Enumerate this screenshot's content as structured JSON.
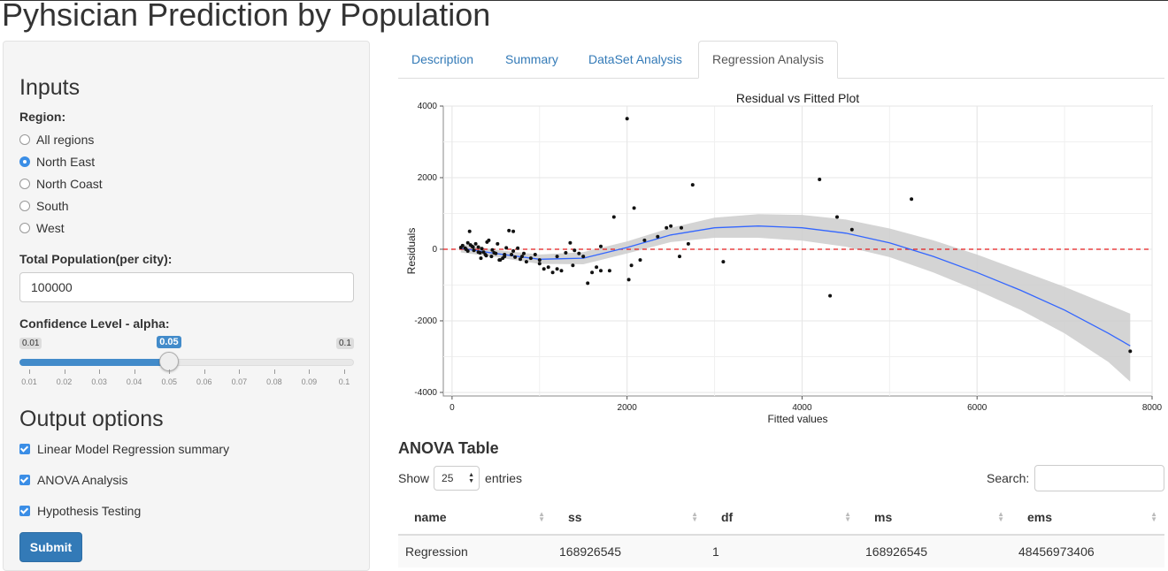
{
  "page": {
    "title": "Pyhsician Prediction by Population"
  },
  "sidebar": {
    "inputs_heading": "Inputs",
    "region_label": "Region:",
    "regions": [
      {
        "label": "All regions",
        "checked": false
      },
      {
        "label": "North East",
        "checked": true
      },
      {
        "label": "North Coast",
        "checked": false
      },
      {
        "label": "South",
        "checked": false
      },
      {
        "label": "West",
        "checked": false
      }
    ],
    "population_label": "Total Population(per city):",
    "population_value": "100000",
    "confidence_label": "Confidence Level - alpha:",
    "slider": {
      "min_label": "0.01",
      "max_label": "0.1",
      "value_label": "0.05",
      "value": 0.05,
      "min": 0.01,
      "max": 0.1,
      "ticks": [
        "0.01",
        "0.02",
        "0.03",
        "0.04",
        "0.05",
        "0.06",
        "0.07",
        "0.08",
        "0.09",
        "0.1"
      ]
    },
    "output_heading": "Output options",
    "outputs": [
      {
        "label": "Linear Model Regression summary",
        "checked": true
      },
      {
        "label": "ANOVA Analysis",
        "checked": true
      },
      {
        "label": "Hypothesis Testing",
        "checked": true
      }
    ],
    "submit_label": "Submit"
  },
  "tabs": [
    {
      "label": "Description",
      "active": false
    },
    {
      "label": "Summary",
      "active": false
    },
    {
      "label": "DataSet Analysis",
      "active": false
    },
    {
      "label": "Regression Analysis",
      "active": true
    }
  ],
  "chart_data": {
    "type": "scatter",
    "title": "Residual vs Fitted Plot",
    "xlabel": "Fitted values",
    "ylabel": "Residuals",
    "xlim": [
      -100,
      8000
    ],
    "ylim": [
      -4100,
      4000
    ],
    "xticks": [
      0,
      2000,
      4000,
      6000,
      8000
    ],
    "yticks": [
      -4000,
      -2000,
      0,
      2000,
      4000
    ],
    "grid": true,
    "reference_line": {
      "y": 0,
      "style": "dashed",
      "color": "#e31a1c"
    },
    "smooth": {
      "color": "#3366ff",
      "band_color": "#cccccc",
      "x": [
        100,
        500,
        1000,
        1500,
        2000,
        2500,
        3000,
        3500,
        4000,
        4500,
        5000,
        5500,
        6000,
        6500,
        7000,
        7500,
        7750
      ],
      "y": [
        30,
        -120,
        -280,
        -250,
        50,
        400,
        600,
        650,
        600,
        450,
        180,
        -200,
        -650,
        -1150,
        -1700,
        -2350,
        -2700
      ],
      "upper": [
        150,
        -20,
        -150,
        -80,
        220,
        600,
        880,
        980,
        960,
        830,
        580,
        250,
        -150,
        -600,
        -1050,
        -1550,
        -1800
      ],
      "lower": [
        -90,
        -220,
        -410,
        -420,
        -120,
        200,
        320,
        320,
        240,
        70,
        -220,
        -650,
        -1150,
        -1700,
        -2350,
        -3150,
        -3700
      ]
    },
    "points": {
      "x": [
        100,
        120,
        150,
        160,
        180,
        200,
        210,
        230,
        250,
        270,
        300,
        320,
        340,
        360,
        380,
        400,
        420,
        450,
        480,
        500,
        520,
        550,
        580,
        600,
        620,
        650,
        680,
        700,
        720,
        750,
        780,
        800,
        850,
        900,
        950,
        1000,
        1050,
        1100,
        1150,
        1200,
        1250,
        1300,
        1350,
        1400,
        1450,
        1500,
        1550,
        1600,
        1650,
        1700,
        1800,
        1850,
        2000,
        2020,
        2050,
        2080,
        2150,
        2200,
        2350,
        2450,
        2500,
        2600,
        2620,
        2700,
        2750,
        3100,
        4200,
        4320,
        4400,
        4570,
        5250,
        7750,
        180,
        240,
        300,
        330,
        390,
        460,
        540,
        600,
        700,
        820,
        1000,
        1200,
        1380,
        1700
      ],
      "y": [
        50,
        100,
        30,
        0,
        -50,
        500,
        120,
        80,
        -30,
        150,
        60,
        -100,
        20,
        -80,
        -150,
        200,
        250,
        -200,
        -100,
        -120,
        150,
        -300,
        -250,
        -200,
        40,
        520,
        -150,
        -50,
        -220,
        30,
        -280,
        -200,
        -350,
        -250,
        -150,
        -400,
        -550,
        -500,
        -650,
        -200,
        -600,
        -100,
        180,
        -30,
        -120,
        -200,
        -950,
        -650,
        -500,
        80,
        -600,
        900,
        3650,
        -850,
        -450,
        1150,
        -300,
        250,
        350,
        600,
        650,
        -200,
        600,
        150,
        1800,
        -350,
        1950,
        -1300,
        900,
        550,
        1400,
        -2850,
        180,
        60,
        -80,
        -250,
        -180,
        -20,
        -300,
        -150,
        500,
        -120,
        -300,
        -550,
        -450,
        -600
      ]
    }
  },
  "anova": {
    "heading": "ANOVA Table",
    "show_label": "Show",
    "entries_label": "entries",
    "page_length": "25",
    "search_label": "Search:",
    "search_value": "",
    "columns": [
      "name",
      "ss",
      "df",
      "ms",
      "ems"
    ],
    "rows": [
      [
        "Regression",
        "168926545",
        "1",
        "168926545",
        "48456973406"
      ]
    ]
  },
  "colors": {
    "accent": "#337ab7",
    "radio_checked": "#3b8ee6",
    "slider_fill": "#428bca"
  }
}
